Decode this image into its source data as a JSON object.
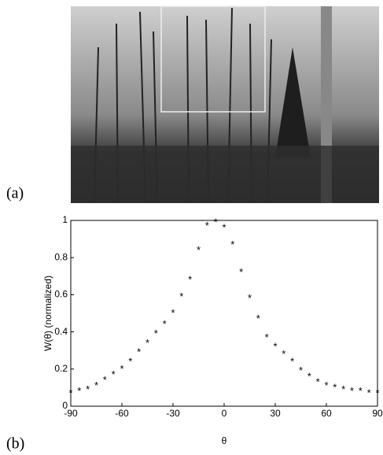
{
  "panel_labels": [
    "(a)",
    "(b)"
  ],
  "chart_data": {
    "type": "scatter",
    "x_label": "θ",
    "y_label": "W(θ) (normalized)",
    "x": [
      -90,
      -85,
      -80,
      -75,
      -70,
      -65,
      -60,
      -55,
      -50,
      -45,
      -40,
      -35,
      -30,
      -25,
      -20,
      -15,
      -10,
      -5,
      0,
      5,
      10,
      15,
      20,
      25,
      30,
      35,
      40,
      45,
      50,
      55,
      60,
      65,
      70,
      75,
      80,
      85,
      90
    ],
    "values": [
      0.08,
      0.09,
      0.1,
      0.12,
      0.15,
      0.18,
      0.21,
      0.25,
      0.3,
      0.35,
      0.4,
      0.45,
      0.51,
      0.6,
      0.69,
      0.85,
      0.98,
      1.0,
      0.97,
      0.88,
      0.73,
      0.59,
      0.48,
      0.38,
      0.33,
      0.29,
      0.25,
      0.2,
      0.17,
      0.14,
      0.12,
      0.11,
      0.1,
      0.09,
      0.09,
      0.08,
      0.08
    ],
    "color": "#000000",
    "xlim": [
      -90,
      90
    ],
    "xticks": [
      -90,
      -60,
      -30,
      0,
      30,
      60,
      90
    ],
    "ylim": [
      0,
      1
    ],
    "yticks": [
      0,
      0.2,
      0.4,
      0.6,
      0.8,
      1
    ]
  }
}
